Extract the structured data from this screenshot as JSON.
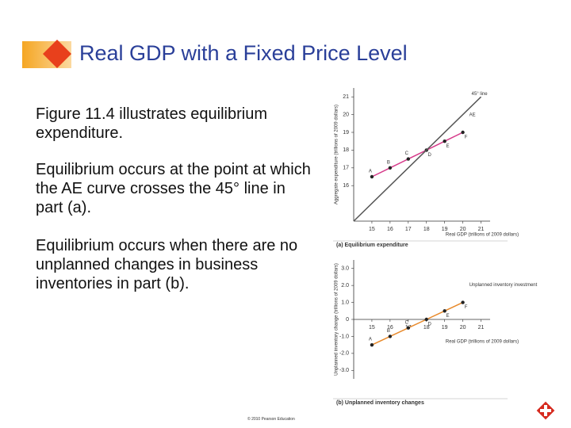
{
  "slide": {
    "title": "Real GDP with a Fixed Price Level",
    "paragraphs": [
      "Figure 11.4 illustrates equilibrium expenditure.",
      "Equilibrium occurs at the point at which the AE curve crosses the 45° line in part (a).",
      "Equilibrium occurs when there are no unplanned changes in business inventories in part (b)."
    ],
    "footer": "© 2010 Pearson Education"
  },
  "chart_data": [
    {
      "type": "line",
      "caption": "(a) Equilibrium expenditure",
      "x_label": "Real GDP (trillions of 2009 dollars)",
      "y_label": "Aggregate expenditure (trillions of 2009 dollars)",
      "x": [
        15,
        16,
        17,
        18,
        19,
        20
      ],
      "point_labels": [
        "A",
        "B",
        "C",
        "D",
        "E",
        "F"
      ],
      "series": [
        {
          "name": "AE",
          "color": "#d63a8a",
          "values": [
            16.5,
            17,
            17.5,
            18,
            18.5,
            19
          ]
        },
        {
          "name": "45° line",
          "color": "#555555",
          "x": [
            14,
            21
          ],
          "values": [
            14,
            21
          ]
        }
      ],
      "xlim": [
        14,
        21.5
      ],
      "ylim": [
        14,
        21.5
      ],
      "xticks": [
        15,
        16,
        17,
        18,
        19,
        20,
        21
      ],
      "yticks": [
        16,
        17,
        18,
        19,
        20,
        21
      ]
    },
    {
      "type": "line",
      "caption": "(b) Unplanned inventory changes",
      "x_label": "Real GDP (trillions of 2009 dollars)",
      "y_label": "Unplanned inventory change (trillions of 2009 dollars)",
      "x": [
        15,
        16,
        17,
        18,
        19,
        20
      ],
      "point_labels": [
        "A",
        "B",
        "C",
        "D",
        "E",
        "F"
      ],
      "series": [
        {
          "name": "Unplanned inventory investment",
          "color": "#e8892a",
          "values": [
            -1.5,
            -1,
            -0.5,
            0,
            0.5,
            1
          ]
        }
      ],
      "xlim": [
        14,
        21.5
      ],
      "ylim": [
        -3.5,
        3.5
      ],
      "xticks": [
        15,
        16,
        17,
        18,
        19,
        20,
        21
      ],
      "yticks": [
        {
          "value": 3,
          "label": "3.0"
        },
        {
          "value": 2,
          "label": "2.0"
        },
        {
          "value": 1,
          "label": "1.0"
        },
        0,
        {
          "value": -1,
          "label": "-1.0"
        },
        {
          "value": -2,
          "label": "-2.0"
        },
        {
          "value": -3,
          "label": "-3.0"
        }
      ]
    }
  ]
}
